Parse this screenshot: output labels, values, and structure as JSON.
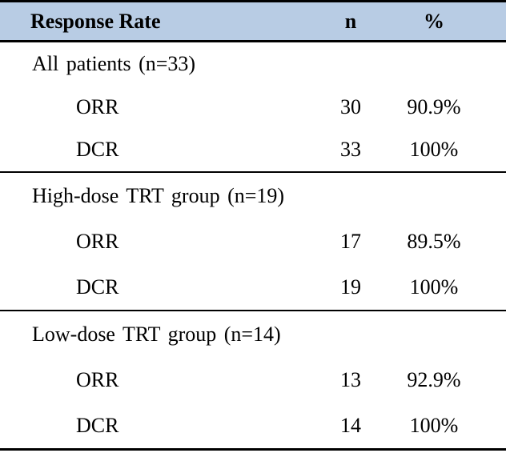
{
  "colors": {
    "header_bg": "#b8cce4",
    "border": "#000000",
    "text": "#000000"
  },
  "table": {
    "columns": [
      "Response Rate",
      "n",
      "%"
    ],
    "sections": [
      {
        "title": "All patients (n=33)",
        "rows": [
          {
            "label": "ORR",
            "n": "30",
            "pct": "90.9%"
          },
          {
            "label": "DCR",
            "n": "33",
            "pct": "100%"
          }
        ]
      },
      {
        "title": "High-dose TRT group (n=19)",
        "rows": [
          {
            "label": "ORR",
            "n": "17",
            "pct": "89.5%"
          },
          {
            "label": "DCR",
            "n": "19",
            "pct": "100%"
          }
        ]
      },
      {
        "title": "Low-dose TRT group (n=14)",
        "rows": [
          {
            "label": "ORR",
            "n": "13",
            "pct": "92.9%"
          },
          {
            "label": "DCR",
            "n": "14",
            "pct": "100%"
          }
        ]
      }
    ]
  }
}
